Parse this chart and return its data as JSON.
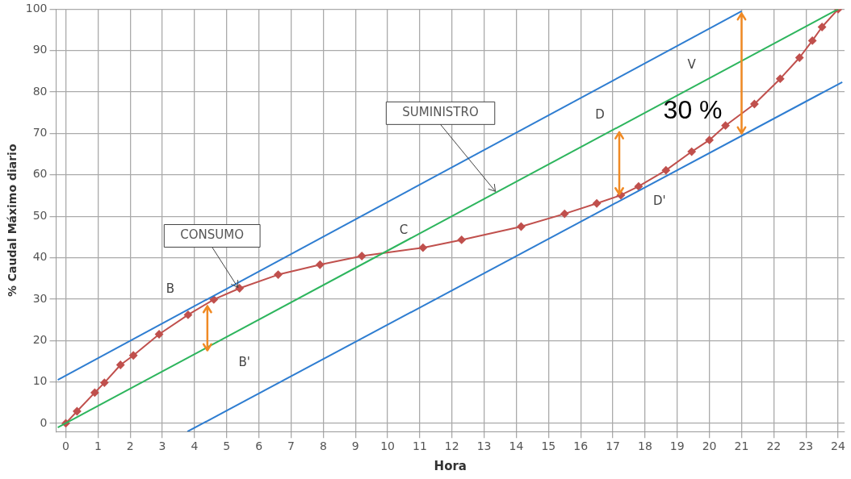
{
  "chart_data": {
    "type": "line",
    "xlabel": "Hora",
    "ylabel": "% Caudal Máximo diario",
    "xlim": [
      -0.3,
      24.2
    ],
    "ylim": [
      -2,
      100
    ],
    "xticks": [
      0,
      1,
      2,
      3,
      4,
      5,
      6,
      7,
      8,
      9,
      10,
      11,
      12,
      13,
      14,
      15,
      16,
      17,
      18,
      19,
      20,
      21,
      22,
      23,
      24
    ],
    "yticks": [
      0,
      10,
      20,
      30,
      40,
      50,
      60,
      70,
      80,
      90,
      100
    ],
    "grid": true,
    "legend": false,
    "series": [
      {
        "color": "#2e7dd1",
        "marker": "none",
        "x": [
          -0.25,
          21
        ],
        "values": [
          10.5,
          99.5
        ]
      },
      {
        "color": "#2e7dd1",
        "marker": "none",
        "x": [
          3.78,
          24.13
        ],
        "values": [
          -2,
          82.4
        ]
      },
      {
        "color": "#2db55d",
        "marker": "none",
        "x": [
          -0.25,
          24
        ],
        "values": [
          -1,
          100
        ]
      },
      {
        "color": "#c0504d",
        "marker": "diamond",
        "x": [
          0,
          0.35,
          0.9,
          1.2,
          1.7,
          2.1,
          2.9,
          3.8,
          4.6,
          5.4,
          6.6,
          7.9,
          9.2,
          11.1,
          12.3,
          14.15,
          15.5,
          16.5,
          17.25,
          17.8,
          18.65,
          19.45,
          20,
          20.5,
          21.4,
          22.2,
          22.8,
          23.2,
          23.5,
          24
        ],
        "values": [
          0,
          2.9,
          7.4,
          9.8,
          14.1,
          16.4,
          21.5,
          26.2,
          29.9,
          32.6,
          35.9,
          38.3,
          40.4,
          42.4,
          44.3,
          47.5,
          50.6,
          53.1,
          55.1,
          57.2,
          61.1,
          65.6,
          68.4,
          71.9,
          77.1,
          83.2,
          88.3,
          92.4,
          95.7,
          100
        ]
      }
    ],
    "annotations": [
      "B",
      "B'",
      "C",
      "D",
      "D'",
      "V",
      {
        "text": "30 %",
        "x": 20.5,
        "y": 71.9
      },
      {
        "text": "SUMINISTRO",
        "x": 13.35,
        "y": 56
      },
      {
        "text": "CONSUMO",
        "x": 5.35,
        "y": 32.8
      }
    ]
  }
}
